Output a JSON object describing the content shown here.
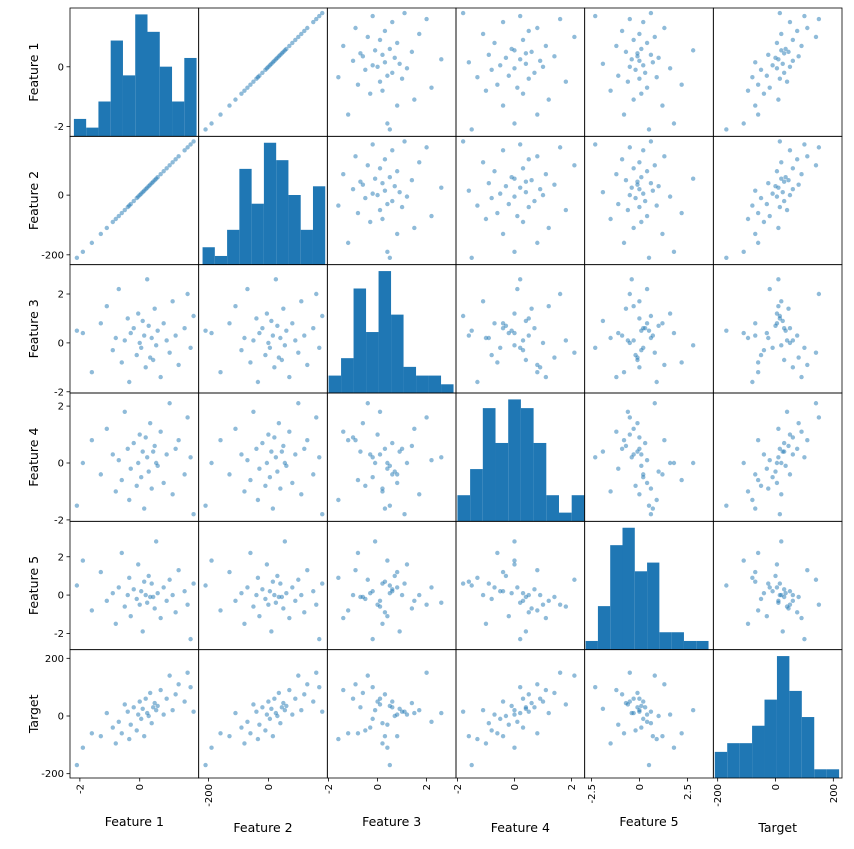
{
  "chart_data": {
    "type": "scatter_matrix",
    "point_color": "#1f77b4",
    "hist_color": "#1f77b4",
    "variables": [
      {
        "name": "Feature 1",
        "lim": [
          -2.33,
          1.97
        ],
        "xticks": [
          -2,
          0
        ],
        "yticks": [
          -2,
          0
        ],
        "values": [
          -2.1,
          -1.6,
          -1.3,
          -1.1,
          -0.9,
          -0.8,
          -0.7,
          -0.6,
          -0.5,
          -0.4,
          -0.35,
          -0.3,
          -0.2,
          -0.1,
          -0.05,
          0.0,
          0.05,
          0.1,
          0.15,
          0.2,
          0.25,
          0.3,
          0.35,
          0.4,
          0.5,
          0.55,
          0.6,
          0.7,
          0.8,
          0.9,
          1.0,
          1.1,
          1.2,
          1.3,
          1.5,
          1.6,
          1.7,
          1.8,
          -1.9,
          0.45
        ],
        "hist": {
          "bins": [
            -2.2,
            -1.79,
            -1.38,
            -0.97,
            -0.56,
            -0.15,
            0.26,
            0.67,
            1.08,
            1.49,
            1.9
          ],
          "counts": [
            2,
            1,
            4,
            11,
            7,
            14,
            12,
            8,
            4,
            9
          ]
        }
      },
      {
        "name": "Feature 2",
        "lim": [
          -233,
          197
        ],
        "xticks": [
          -200,
          0
        ],
        "yticks": [
          -200,
          0
        ],
        "values": [
          -210,
          -160,
          -130,
          -110,
          -90,
          -80,
          -70,
          -60,
          -50,
          -40,
          -35,
          -30,
          -20,
          -10,
          -5,
          0,
          5,
          10,
          15,
          20,
          25,
          30,
          35,
          40,
          50,
          55,
          60,
          70,
          80,
          90,
          100,
          110,
          120,
          130,
          150,
          160,
          170,
          180,
          -190,
          45
        ],
        "hist": {
          "bins": [
            -220,
            -179,
            -138,
            -97,
            -56,
            -15,
            26,
            67,
            108,
            149,
            190
          ],
          "counts": [
            2,
            1,
            4,
            11,
            7,
            14,
            12,
            8,
            4,
            9
          ]
        }
      },
      {
        "name": "Feature 3",
        "lim": [
          -2.05,
          3.2
        ],
        "xticks": [
          -2,
          0,
          2
        ],
        "yticks": [
          -2,
          0,
          2
        ],
        "values": [
          0.5,
          -1.2,
          0.8,
          1.5,
          -0.3,
          0.2,
          2.2,
          -0.8,
          0.1,
          1.0,
          -1.6,
          0.4,
          0.6,
          -0.5,
          1.2,
          0.0,
          -0.2,
          0.9,
          0.3,
          -1.0,
          2.6,
          0.7,
          -0.6,
          0.2,
          1.4,
          -0.1,
          0.5,
          -1.4,
          0.8,
          0.1,
          -0.4,
          1.7,
          0.3,
          -0.9,
          0.6,
          2.0,
          -0.2,
          1.1,
          0.4,
          -0.7
        ],
        "hist": {
          "bins": [
            -2.0,
            -1.49,
            -0.98,
            -0.47,
            0.04,
            0.55,
            1.06,
            1.57,
            2.08,
            2.59,
            3.1
          ],
          "counts": [
            2,
            4,
            12,
            7,
            14,
            9,
            3,
            2,
            2,
            1
          ]
        }
      },
      {
        "name": "Feature 4",
        "lim": [
          -2.05,
          2.46
        ],
        "xticks": [
          -2,
          0,
          2
        ],
        "yticks": [
          -2,
          0,
          2
        ],
        "values": [
          -1.5,
          0.8,
          -0.4,
          1.2,
          0.3,
          -1.0,
          0.1,
          -0.6,
          1.8,
          0.5,
          -1.3,
          -0.2,
          0.7,
          -0.8,
          0.0,
          1.0,
          -0.5,
          0.4,
          -1.6,
          0.9,
          0.2,
          -0.3,
          1.4,
          -0.9,
          0.6,
          0.0,
          -0.1,
          1.1,
          -0.7,
          0.3,
          2.1,
          -1.1,
          0.5,
          0.8,
          -0.4,
          1.6,
          0.2,
          -1.8,
          0.0,
          0.4
        ],
        "hist": {
          "bins": [
            -2.0,
            -1.555,
            -1.11,
            -0.665,
            -0.22,
            0.225,
            0.67,
            1.115,
            1.56,
            2.005,
            2.45
          ],
          "counts": [
            3,
            6,
            13,
            9,
            14,
            13,
            9,
            3,
            1,
            3
          ]
        }
      },
      {
        "name": "Feature 5",
        "lim": [
          -2.85,
          3.85
        ],
        "xticks": [
          -2.5,
          0,
          2.5
        ],
        "yticks": [
          -2,
          0,
          2
        ],
        "values": [
          0.5,
          -0.8,
          1.2,
          -0.3,
          0.1,
          -1.5,
          0.4,
          2.2,
          -0.6,
          0.0,
          0.9,
          -1.1,
          0.3,
          -0.2,
          1.6,
          -0.5,
          0.2,
          -1.9,
          0.7,
          0.0,
          -0.4,
          1.0,
          -0.1,
          0.6,
          -0.7,
          2.8,
          0.1,
          -1.2,
          0.4,
          -0.3,
          0.8,
          0.0,
          -0.9,
          1.3,
          0.2,
          -0.5,
          -2.3,
          0.6,
          1.8,
          -0.1
        ],
        "hist": {
          "bins": [
            -2.8,
            -2.16,
            -1.52,
            -0.88,
            -0.24,
            0.4,
            1.04,
            1.68,
            2.32,
            2.96,
            3.6
          ],
          "counts": [
            1,
            5,
            12,
            14,
            9,
            10,
            2,
            2,
            1,
            1
          ]
        }
      },
      {
        "name": "Target",
        "lim": [
          -215,
          230
        ],
        "xticks": [
          -200,
          0,
          200
        ],
        "yticks": [
          -200,
          0,
          200
        ],
        "values": [
          -170,
          -60,
          -70,
          10,
          -40,
          -95,
          -20,
          -60,
          40,
          15,
          -80,
          -30,
          30,
          -50,
          5,
          50,
          -10,
          25,
          -70,
          60,
          10,
          0,
          80,
          -25,
          45,
          20,
          35,
          90,
          5,
          60,
          140,
          20,
          75,
          110,
          50,
          150,
          100,
          15,
          -110,
          30
        ],
        "hist": {
          "bins": [
            -210,
            -167,
            -124,
            -81,
            -38,
            5,
            48,
            91,
            134,
            177,
            220
          ],
          "counts": [
            3,
            4,
            4,
            6,
            9,
            14,
            10,
            7,
            1,
            1
          ]
        }
      }
    ]
  }
}
